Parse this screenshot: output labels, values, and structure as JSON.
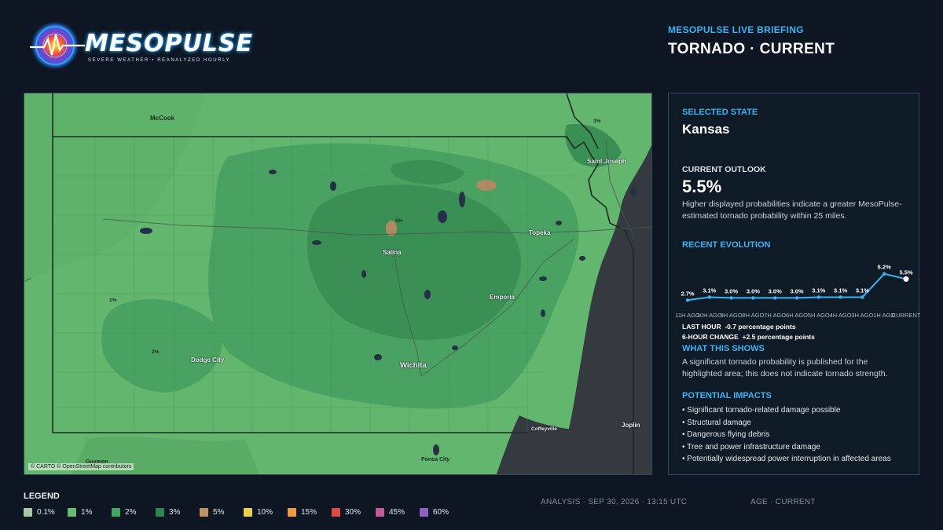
{
  "logo": {
    "wordmark": "MESOPULSE",
    "tagline": "SEVERE WEATHER • REANALYZED HOURLY",
    "icon": "radar-pulse-icon"
  },
  "header": {
    "briefing": "MESOPULSE LIVE BRIEFING",
    "headline": "TORNADO · CURRENT"
  },
  "map": {
    "attribution": "© CARTO © OpenStreetMap contributors",
    "cities": {
      "mccook": "McCook",
      "saint_joseph": "Saint Joseph",
      "topeka": "Topeka",
      "salina": "Salina",
      "emporia": "Emporia",
      "dodge_city": "Dodge City",
      "wichita": "Wichita",
      "coffeyville": "Coffeyville",
      "joplin": "Joplin",
      "ponca_city": "Ponca City",
      "guymon": "Guymon"
    },
    "prob_labels": {
      "nw": "3%",
      "center": "5%",
      "west": "1%",
      "sw": "2%"
    },
    "highways": [
      "I-70",
      "I-70",
      "I-135",
      "I-335",
      "I-35",
      "I-29",
      "I-35",
      "I-135"
    ],
    "colors": {
      "base": "#343a40",
      "p1": "#64b86f",
      "p2": "#4aa262",
      "p3": "#3a8f55",
      "p5": "#b08a63"
    }
  },
  "panel": {
    "selected_label": "SELECTED STATE",
    "state": "Kansas",
    "outlook_label": "CURRENT OUTLOOK",
    "outlook_value": "5.5%",
    "outlook_text": "Higher displayed probabilities indicate a greater MesoPulse-estimated tornado probability within 25 miles.",
    "evolution_label": "RECENT EVOLUTION",
    "last_hour_label": "LAST HOUR",
    "last_hour_value": "-0.7 percentage points",
    "six_hour_label": "6-HOUR CHANGE",
    "six_hour_value": "+2.5 percentage points",
    "shows_label": "WHAT THIS SHOWS",
    "shows_text": "A significant tornado probability is published for the highlighted area; this does not indicate tornado strength.",
    "impacts_label": "POTENTIAL IMPACTS",
    "impacts": [
      "• Significant tornado-related damage possible",
      "• Structural damage",
      "• Dangerous flying debris",
      "• Tree and power infrastructure damage",
      "• Potentially widespread power interruption in affected areas"
    ]
  },
  "chart_data": {
    "type": "line",
    "categories": [
      "11H AGO",
      "10H AGO",
      "9H AGO",
      "8H AGO",
      "7H AGO",
      "6H AGO",
      "5H AGO",
      "4H AGO",
      "3H AGO",
      "1H AGO",
      "CURRENT"
    ],
    "values": [
      2.7,
      3.1,
      3.0,
      3.0,
      3.0,
      3.0,
      3.1,
      3.1,
      3.1,
      6.2,
      5.5
    ],
    "data_labels": [
      "2.7%",
      "3.1%",
      "3.0%",
      "3.0%",
      "3.0%",
      "3.0%",
      "3.1%",
      "3.1%",
      "3.1%",
      "6.2%",
      "5.5%"
    ],
    "ylim": [
      2.0,
      7.0
    ],
    "line_color": "#3bb4f2"
  },
  "legend": {
    "title": "LEGEND",
    "items": [
      {
        "label": "0.1%",
        "color": "#a8c8a8"
      },
      {
        "label": "1%",
        "color": "#66bd6f"
      },
      {
        "label": "2%",
        "color": "#3fa65b"
      },
      {
        "label": "3%",
        "color": "#2a8a4b"
      },
      {
        "label": "5%",
        "color": "#c09066"
      },
      {
        "label": "10%",
        "color": "#e9d14d"
      },
      {
        "label": "15%",
        "color": "#ec9a3e"
      },
      {
        "label": "30%",
        "color": "#dc4c45"
      },
      {
        "label": "45%",
        "color": "#c55a9b"
      },
      {
        "label": "60%",
        "color": "#8e62c0"
      }
    ]
  },
  "footer": {
    "analysis": "ANALYSIS · SEP 30, 2026 · 13:15 UTC",
    "age": "AGE · CURRENT"
  }
}
